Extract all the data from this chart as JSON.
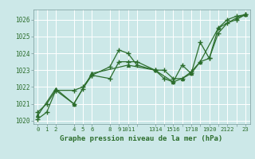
{
  "xlabel": "Graphe pression niveau de la mer (hPa)",
  "background_color": "#cce8e8",
  "grid_color": "#ffffff",
  "line_color": "#2d6e2d",
  "ylim": [
    1019.8,
    1026.6
  ],
  "xlim": [
    -0.5,
    23.5
  ],
  "yticks": [
    1020,
    1021,
    1022,
    1023,
    1024,
    1025,
    1026
  ],
  "xtick_positions": [
    0,
    1,
    2,
    4,
    5,
    6,
    8,
    9,
    10,
    11,
    13,
    14,
    15,
    16,
    17,
    18,
    19,
    20,
    21,
    22,
    23
  ],
  "xtick_labels": [
    "0",
    "1",
    "2",
    "4",
    "5",
    "6",
    "8",
    "9",
    "1011",
    "",
    "1314",
    "",
    "1516",
    "",
    "1718",
    "",
    "1920",
    "",
    "2122",
    "",
    "23"
  ],
  "series1_x": [
    0,
    1,
    2,
    4,
    5,
    6,
    8,
    9,
    10,
    11,
    13,
    14,
    15,
    16,
    17,
    18,
    19,
    20,
    21,
    22,
    23
  ],
  "series1_y": [
    1020.5,
    1021.0,
    1021.8,
    1021.0,
    1021.9,
    1022.7,
    1023.2,
    1024.2,
    1024.0,
    1023.3,
    1023.0,
    1022.5,
    1022.3,
    1023.3,
    1022.8,
    1024.65,
    1023.7,
    1025.5,
    1026.0,
    1026.2,
    1026.3
  ],
  "series2_x": [
    0,
    1,
    2,
    4,
    5,
    6,
    8,
    9,
    10,
    11,
    13,
    14,
    15,
    16,
    17,
    18,
    19,
    20,
    21,
    22,
    23
  ],
  "series2_y": [
    1020.1,
    1020.5,
    1021.8,
    1021.8,
    1022.0,
    1022.7,
    1022.5,
    1023.5,
    1023.5,
    1023.5,
    1023.0,
    1023.0,
    1022.5,
    1022.5,
    1022.9,
    1023.5,
    1023.7,
    1025.2,
    1025.8,
    1026.0,
    1026.3
  ],
  "series3_x": [
    0,
    2,
    4,
    6,
    10,
    13,
    15,
    16,
    17,
    18,
    20,
    22,
    23
  ],
  "series3_y": [
    1020.3,
    1021.9,
    1021.0,
    1022.8,
    1023.3,
    1023.0,
    1022.3,
    1022.5,
    1022.8,
    1023.5,
    1025.5,
    1026.1,
    1026.3
  ],
  "figsize": [
    3.2,
    2.0
  ],
  "dpi": 100
}
